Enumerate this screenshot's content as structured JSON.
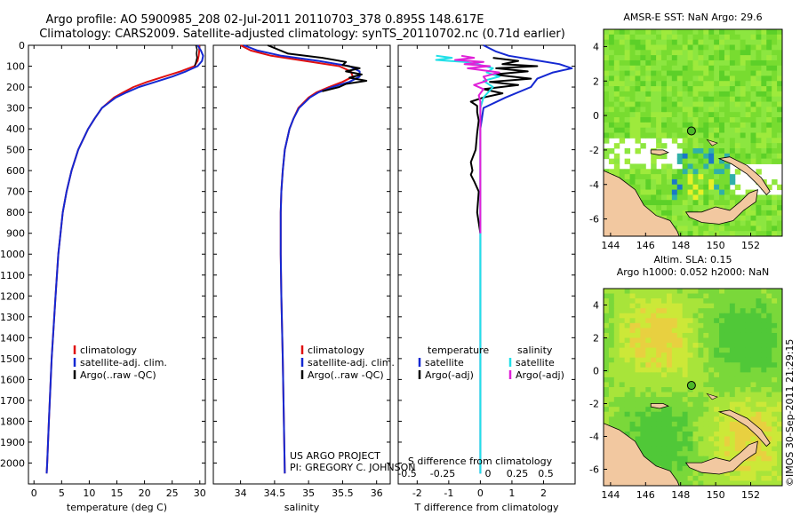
{
  "header": {
    "line1": "Argo profile: AO 5900985_208 02-Jul-2011 20110703_378 0.895S 148.617E",
    "line2": "Climatology: CARS2009. Satellite-adjusted climatology: synTS_20110702.nc (0.71d earlier)"
  },
  "colors": {
    "climatology": "#e01010",
    "satellite": "#1428d2",
    "argo": "#000000",
    "sat_sal": "#22e0e8",
    "argo_sal": "#e020d8",
    "land": "#f2c8a0"
  },
  "chart_data": [
    {
      "type": "line",
      "panel": "temperature",
      "xlabel": "temperature (deg C)",
      "ylabel": "",
      "xlim": [
        -1,
        31
      ],
      "ylim": [
        2100,
        0
      ],
      "xticks": [
        0,
        5,
        10,
        15,
        20,
        25,
        30
      ],
      "yticks": [
        0,
        100,
        200,
        300,
        400,
        500,
        600,
        700,
        800,
        900,
        1000,
        1100,
        1200,
        1300,
        1400,
        1500,
        1600,
        1700,
        1800,
        1900,
        2000
      ],
      "legend": [
        "climatology",
        "satellite-adj. clim.",
        "Argo(..raw -QC)"
      ],
      "series": [
        {
          "name": "climatology",
          "color": "#e01010",
          "depth": [
            0,
            25,
            50,
            75,
            100,
            125,
            150,
            175,
            200,
            225,
            250,
            300,
            350,
            400,
            500,
            600,
            700,
            800,
            1000,
            1200,
            1500,
            1800,
            2000,
            2050
          ],
          "values": [
            29.9,
            29.9,
            29.8,
            29.6,
            29.0,
            26.5,
            23.5,
            20.5,
            18.0,
            16.2,
            14.5,
            12.3,
            11.0,
            9.8,
            8.0,
            6.8,
            5.9,
            5.2,
            4.4,
            3.9,
            3.2,
            2.7,
            2.4,
            2.3
          ]
        },
        {
          "name": "satellite-adj. clim.",
          "color": "#1428d2",
          "depth": [
            0,
            25,
            50,
            75,
            100,
            125,
            150,
            175,
            200,
            225,
            250,
            300,
            350,
            400,
            500,
            600,
            700,
            800,
            1000,
            1200,
            1500,
            1800,
            2000,
            2050
          ],
          "values": [
            29.6,
            30.2,
            30.6,
            30.4,
            29.6,
            27.5,
            25.0,
            22.0,
            19.0,
            16.8,
            14.8,
            12.3,
            11.0,
            9.8,
            8.0,
            6.8,
            5.9,
            5.2,
            4.4,
            3.9,
            3.2,
            2.7,
            2.4,
            2.3
          ]
        }
      ]
    },
    {
      "type": "line",
      "panel": "salinity",
      "xlabel": "salinity",
      "xlim": [
        33.6,
        36.2
      ],
      "ylim": [
        2100,
        0
      ],
      "xticks": [
        34,
        34.5,
        35,
        35.5,
        36
      ],
      "legend": [
        "climatology",
        "satellite-adj. clim.",
        "Argo(..raw -QC)"
      ],
      "series": [
        {
          "name": "climatology",
          "color": "#e01010",
          "depth": [
            0,
            25,
            50,
            75,
            100,
            125,
            150,
            175,
            200,
            225,
            250,
            300,
            350,
            400,
            500,
            600,
            700,
            800,
            1000,
            1200,
            1500,
            2050
          ],
          "values": [
            34.0,
            34.15,
            34.45,
            34.95,
            35.45,
            35.62,
            35.65,
            35.5,
            35.3,
            35.12,
            35.0,
            34.85,
            34.78,
            34.72,
            34.65,
            34.62,
            34.6,
            34.59,
            34.59,
            34.6,
            34.62,
            34.65
          ]
        },
        {
          "name": "satellite-adj. clim.",
          "color": "#1428d2",
          "depth": [
            0,
            25,
            50,
            75,
            100,
            125,
            150,
            175,
            200,
            225,
            250,
            300,
            350,
            400,
            500,
            600,
            700,
            800,
            1000,
            1200,
            1500,
            2050
          ],
          "values": [
            34.05,
            34.25,
            34.6,
            35.15,
            35.6,
            35.75,
            35.75,
            35.6,
            35.35,
            35.15,
            35.02,
            34.86,
            34.78,
            34.72,
            34.65,
            34.62,
            34.6,
            34.59,
            34.59,
            34.6,
            34.62,
            34.65
          ]
        },
        {
          "name": "Argo(..raw -QC)",
          "color": "#000000",
          "depth": [
            0,
            40,
            60,
            80,
            95,
            110,
            125,
            140,
            155,
            170,
            185,
            200,
            220
          ],
          "values": [
            34.4,
            34.7,
            35.2,
            35.55,
            35.5,
            35.75,
            35.55,
            35.78,
            35.6,
            35.85,
            35.55,
            35.45,
            35.2
          ]
        }
      ]
    },
    {
      "type": "line",
      "panel": "difference",
      "xlabel": "T difference from climatology",
      "xlabel_top": "S difference from climatology",
      "xlim": [
        -2.6,
        3.0
      ],
      "ylim": [
        2100,
        0
      ],
      "xticks": [
        -2,
        -1,
        0,
        1,
        2
      ],
      "xticks_s": [
        "-0.5",
        "-0.25",
        "0",
        "0.25",
        "0.5"
      ],
      "legend_temperature_title": "temperature",
      "legend_salinity_title": "salinity",
      "legend": [
        "satellite",
        "Argo(-adj)",
        "satellite",
        "Argo(-adj)"
      ],
      "series": [
        {
          "name": "satellite",
          "color": "#1428d2",
          "depth": [
            0,
            30,
            50,
            70,
            90,
            110,
            130,
            160,
            200,
            250,
            300,
            400,
            600,
            1000,
            1500,
            2050
          ],
          "values": [
            0.1,
            0.5,
            0.9,
            1.7,
            2.5,
            2.9,
            2.3,
            1.8,
            1.6,
            0.8,
            0.1,
            0.0,
            0.0,
            0.0,
            0.0,
            0.0
          ]
        },
        {
          "name": "Argo(-adj)",
          "color": "#000000",
          "depth": [
            60,
            75,
            90,
            100,
            110,
            125,
            140,
            160,
            175,
            190,
            210,
            230,
            250,
            270,
            290,
            320,
            360,
            420,
            500,
            560,
            600,
            620,
            650,
            700,
            800,
            900
          ],
          "values": [
            0.4,
            1.2,
            0.7,
            1.8,
            0.5,
            1.5,
            0.4,
            1.6,
            0.3,
            1.2,
            0.1,
            0.7,
            0.1,
            -0.3,
            -0.1,
            -0.1,
            -0.05,
            -0.1,
            -0.15,
            -0.3,
            -0.25,
            -0.3,
            -0.2,
            -0.05,
            -0.1,
            0.0
          ]
        },
        {
          "name": "satellite",
          "color": "#22e0e8",
          "depth": [
            50,
            60,
            70,
            80,
            90,
            110,
            130,
            150,
            170,
            200,
            250,
            300,
            400,
            600,
            1000,
            1500,
            2050
          ],
          "values": [
            -1.4,
            -0.9,
            -1.4,
            -0.5,
            -0.1,
            0.4,
            0.2,
            0.6,
            0.1,
            0.4,
            0.1,
            0.0,
            0.0,
            0.0,
            0.0,
            0.0,
            0.0
          ]
        },
        {
          "name": "Argo(-adj)",
          "color": "#e020d8",
          "depth": [
            50,
            60,
            70,
            80,
            90,
            100,
            110,
            130,
            150,
            170,
            190,
            210,
            240,
            270,
            300,
            400,
            600,
            800,
            900
          ],
          "values": [
            -0.6,
            -0.2,
            -0.8,
            0.1,
            -0.5,
            0.3,
            -0.4,
            0.6,
            0.1,
            0.2,
            -0.2,
            0.1,
            -0.05,
            0.0,
            0.0,
            0.0,
            0.0,
            0.0,
            0.0
          ]
        }
      ]
    },
    {
      "type": "heatmap",
      "panel": "sst-map",
      "title": "AMSR-E SST: NaN Argo: 29.6",
      "xlim": [
        143.6,
        153.8
      ],
      "ylim": [
        -7,
        5
      ],
      "xticks": [
        144,
        146,
        148,
        150,
        152
      ],
      "yticks": [
        4,
        2,
        0,
        -2,
        -4,
        -6
      ],
      "marker": {
        "lon": 148.617,
        "lat": -0.895
      }
    },
    {
      "type": "heatmap",
      "panel": "sla-map",
      "title_line1": "Altim. SLA: 0.15",
      "title_line2": "Argo h1000: 0.052 h2000: NaN",
      "xlim": [
        143.6,
        153.8
      ],
      "ylim": [
        -7,
        5
      ],
      "xticks": [
        144,
        146,
        148,
        150,
        152
      ],
      "yticks": [
        4,
        2,
        0,
        -2,
        -4,
        -6
      ],
      "marker": {
        "lon": 148.617,
        "lat": -0.895
      }
    }
  ],
  "credits": {
    "line1": "US ARGO PROJECT",
    "line2": "PI: GREGORY C. JOHNSON"
  },
  "stamp": "©IMOS 30-Sep-2011 21:29:15"
}
